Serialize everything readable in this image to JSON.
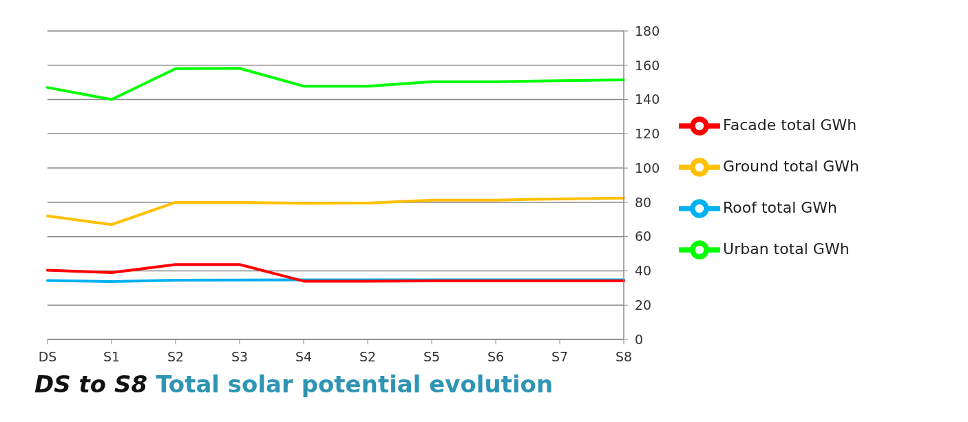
{
  "chart_data": {
    "type": "line",
    "title": "DS to S8",
    "subtitle": "Total solar potential evolution",
    "categories": [
      "DS",
      "S1",
      "S2",
      "S3",
      "S4",
      "S2",
      "S5",
      "S6",
      "S7",
      "S8"
    ],
    "series": [
      {
        "name": "Roof total GWh",
        "color": "#00b0f0",
        "values": [
          34.4,
          33.8,
          34.6,
          34.7,
          34.8,
          34.8,
          34.8,
          34.8,
          34.8,
          34.8
        ]
      },
      {
        "name": "Facade total GWh",
        "color": "#ff0000",
        "values": [
          40.4,
          39,
          43.7,
          43.7,
          34,
          34,
          34.2,
          34.2,
          34.2,
          34.2
        ]
      },
      {
        "name": "Ground total GWh",
        "color": "#ffc000",
        "values": [
          72,
          67,
          80,
          80,
          79.5,
          79.6,
          81.3,
          81.3,
          82,
          82.5
        ]
      },
      {
        "name": "Urban total GWh",
        "color": "#00ff00",
        "values": [
          147,
          140,
          158,
          158.2,
          147.8,
          147.8,
          150.4,
          150.4,
          151,
          151.5
        ]
      }
    ],
    "ylim": [
      0,
      180
    ],
    "yticks": [
      0,
      20,
      40,
      60,
      80,
      100,
      120,
      140,
      160,
      180
    ],
    "grid": "y",
    "legend": "right",
    "marker": "none",
    "line_style": "solid"
  }
}
